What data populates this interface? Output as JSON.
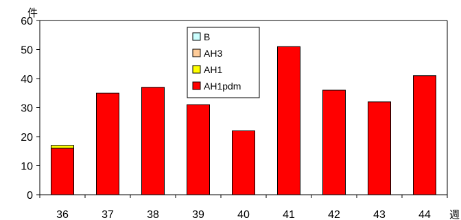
{
  "chart_data": {
    "type": "bar",
    "stacked": true,
    "categories": [
      "36",
      "37",
      "38",
      "39",
      "40",
      "41",
      "42",
      "43",
      "44"
    ],
    "series": [
      {
        "name": "AH1pdm",
        "color": "#ff0000",
        "values": [
          16,
          35,
          37,
          31,
          22,
          51,
          36,
          32,
          41
        ]
      },
      {
        "name": "AH1",
        "color": "#ffff00",
        "values": [
          1,
          0,
          0,
          0,
          0,
          0,
          0,
          0,
          0
        ]
      },
      {
        "name": "AH3",
        "color": "#ffcc99",
        "values": [
          0,
          0,
          0,
          0,
          0,
          0,
          0,
          0,
          0
        ]
      },
      {
        "name": "B",
        "color": "#ccffff",
        "values": [
          0,
          0,
          0,
          0,
          0,
          0,
          0,
          0,
          0
        ]
      }
    ],
    "legend_order": [
      "B",
      "AH3",
      "AH1",
      "AH1pdm"
    ],
    "ylim": [
      0,
      60
    ],
    "yticks": [
      "0",
      "10",
      "20",
      "30",
      "40",
      "50",
      "60"
    ],
    "ylabel": "件",
    "xlabel": "週",
    "grid": false,
    "legend_position": "top-center"
  }
}
